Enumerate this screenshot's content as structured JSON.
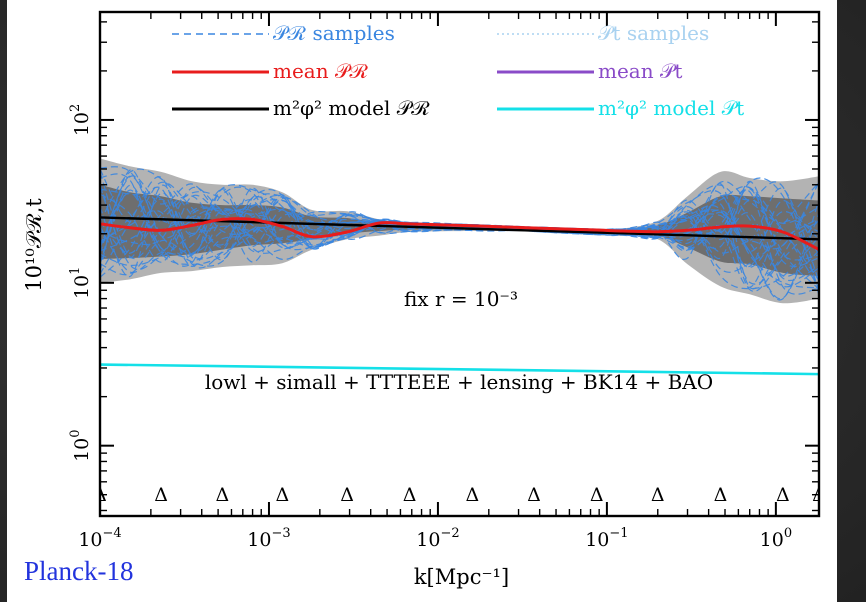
{
  "slide": {
    "watermark": "Planck-18"
  },
  "colors": {
    "samples_R": "#3a86e0",
    "samples_t": "#a9d2f0",
    "mean_R": "#e81c1c",
    "mean_t": "#8a4bc8",
    "model_R": "#000000",
    "model_t": "#14e0e8",
    "band_outer": "#b3b3b3",
    "band_inner": "#6e6e6e"
  },
  "chart_data": {
    "type": "line",
    "xlabel": "k[Mpc⁻¹]",
    "ylabel": "10¹⁰𝒫ℛ,t",
    "xscale": "log",
    "yscale": "log",
    "xlim": [
      0.0001,
      1.8
    ],
    "ylim": [
      0.37,
      460
    ],
    "x_ticks": [
      {
        "value": 0.0001,
        "base": "10",
        "exp": "−4"
      },
      {
        "value": 0.001,
        "base": "10",
        "exp": "−3"
      },
      {
        "value": 0.01,
        "base": "10",
        "exp": "−2"
      },
      {
        "value": 0.1,
        "base": "10",
        "exp": "−1"
      },
      {
        "value": 1,
        "base": "10",
        "exp": "0"
      }
    ],
    "y_ticks": [
      {
        "value": 1,
        "base": "10",
        "exp": "0"
      },
      {
        "value": 10,
        "base": "10",
        "exp": "1"
      },
      {
        "value": 100,
        "base": "10",
        "exp": "2"
      }
    ],
    "annotation": "fix r = 10⁻³",
    "dataset_label": "lowl + simall + TTTEEE + lensing + BK14 + BAO",
    "legend": {
      "placement": "top",
      "entries": [
        {
          "label": "𝒫ℛ samples",
          "style": "dashed",
          "color": "#3a86e0"
        },
        {
          "label": "𝒫t samples",
          "style": "dotted",
          "color": "#a9d2f0"
        },
        {
          "label": "mean 𝒫ℛ",
          "style": "solid",
          "color": "#e81c1c"
        },
        {
          "label": "mean 𝒫t",
          "style": "solid",
          "color": "#8a4bc8"
        },
        {
          "label": "m²φ² model 𝒫ℛ",
          "style": "solid",
          "color": "#000000"
        },
        {
          "label": "m²φ² model 𝒫t",
          "style": "solid",
          "color": "#14e0e8"
        }
      ]
    },
    "knots_k": [
      0.0001,
      0.00023,
      0.00053,
      0.0012,
      0.0029,
      0.0068,
      0.016,
      0.037,
      0.087,
      0.2,
      0.47,
      1.1,
      1.8
    ],
    "band_k": [
      0.0001,
      0.00015,
      0.00023,
      0.00035,
      0.00053,
      0.0008,
      0.0012,
      0.0018,
      0.0029,
      0.0045,
      0.0068,
      0.016,
      0.037,
      0.087,
      0.12,
      0.2,
      0.3,
      0.47,
      0.7,
      1.1,
      1.8
    ],
    "outer_band": {
      "upper": [
        58,
        52,
        48,
        42,
        40,
        40,
        36,
        28,
        27.5,
        24.5,
        23.5,
        22.8,
        22,
        21.4,
        21.5,
        24,
        34,
        48,
        44,
        42,
        45
      ],
      "lower": [
        10,
        10.5,
        11.5,
        11.8,
        12.5,
        12.8,
        13.2,
        16,
        18.5,
        19.5,
        20.5,
        20.8,
        20.6,
        19.6,
        19.4,
        18.5,
        13,
        9.5,
        8.5,
        7.5,
        8
      ]
    },
    "inner_band": {
      "upper": [
        40,
        36,
        34,
        31,
        30,
        30,
        29,
        25.5,
        25,
        23.5,
        23,
        22.2,
        21.4,
        21,
        21,
        22.5,
        27,
        34,
        34,
        33,
        32
      ],
      "lower": [
        14,
        14.2,
        14.5,
        15,
        16,
        17,
        17.5,
        18.5,
        20,
        20.8,
        21.2,
        21.2,
        21,
        20.2,
        20,
        19.5,
        16.5,
        13.5,
        13,
        11.5,
        11
      ]
    },
    "mean_R": {
      "x": [
        0.0001,
        0.00015,
        0.00023,
        0.00035,
        0.00053,
        0.0008,
        0.0012,
        0.0018,
        0.0029,
        0.0045,
        0.0068,
        0.016,
        0.037,
        0.087,
        0.12,
        0.2,
        0.3,
        0.47,
        0.7,
        1.1,
        1.8
      ],
      "y": [
        23,
        21.8,
        21,
        22.5,
        24.5,
        24.5,
        22.2,
        19.2,
        20.5,
        23.3,
        23,
        22.4,
        21.7,
        21.1,
        20.8,
        20.6,
        21,
        22,
        22.3,
        20.5,
        16
      ]
    },
    "model_R": {
      "x": [
        0.0001,
        1.8
      ],
      "y": [
        25.2,
        18.5
      ]
    },
    "model_t": {
      "x": [
        0.0001,
        1.8
      ],
      "y": [
        3.15,
        2.75
      ]
    }
  }
}
